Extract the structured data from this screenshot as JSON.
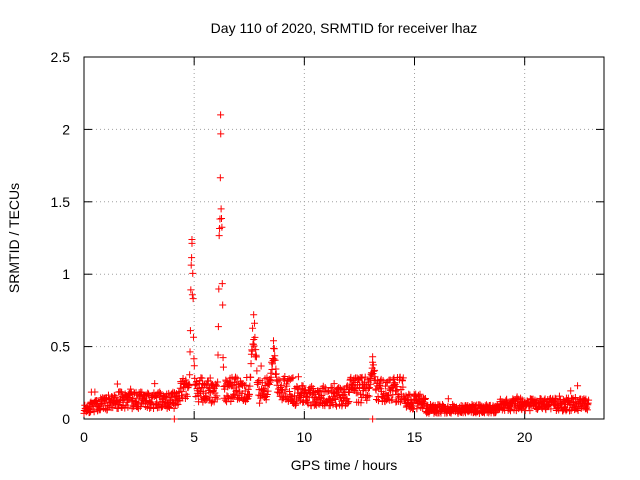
{
  "chart_data": {
    "type": "scatter",
    "title": "Day 110 of 2020, SRMTID for receiver lhaz",
    "xlabel": "GPS time / hours",
    "ylabel": "SRMTID / TECUs",
    "xlim": [
      0,
      23.6
    ],
    "ylim": [
      0,
      2.5
    ],
    "x_ticks": [
      0,
      5,
      10,
      15,
      20
    ],
    "x_tick_labels": [
      "0",
      "5",
      "10",
      "15",
      "20"
    ],
    "y_ticks": [
      0,
      0.5,
      1,
      1.5,
      2,
      2.5
    ],
    "y_tick_labels": [
      "0",
      "0.5",
      "1",
      "1.5",
      "2",
      "2.5"
    ],
    "grid": true,
    "series": [
      {
        "name": "SRMTID",
        "color": "#ff0000",
        "marker": "plus",
        "peaks": [
          {
            "x": 4.9,
            "y": 1.24
          },
          {
            "x": 6.2,
            "y": 2.1
          },
          {
            "x": 7.7,
            "y": 0.72
          },
          {
            "x": 8.6,
            "y": 0.54
          },
          {
            "x": 13.1,
            "y": 0.43
          }
        ],
        "outliers": [
          {
            "x": 4.1,
            "y": 0.0
          },
          {
            "x": 13.1,
            "y": 0.0
          },
          {
            "x": 22.4,
            "y": 0.23
          }
        ]
      }
    ]
  }
}
